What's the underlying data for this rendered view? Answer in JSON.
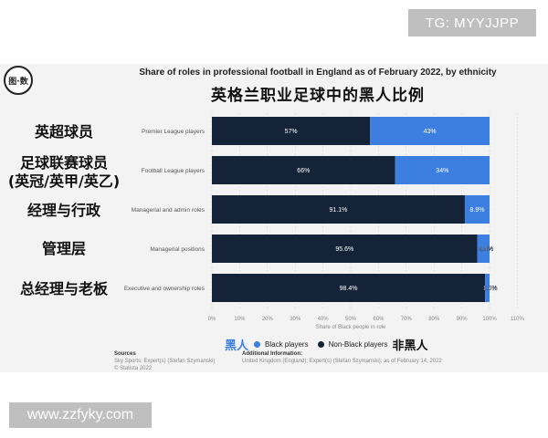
{
  "watermarks": {
    "top": "TG: MYYJJPP",
    "bottom": "www.zzfyky.com"
  },
  "logo_text": "图·数",
  "title": "Share of roles in professional football in England as of February 2022, by ethnicity",
  "cn_title": "英格兰职业足球中的黑人比例",
  "cn_labels": [
    "英超球员",
    "足球联赛球员",
    "(英冠/英甲/英乙)",
    "经理与行政",
    "管理层",
    "总经理与老板"
  ],
  "legend": {
    "cn_black": "黑人",
    "black": "Black players",
    "non_black": "Non-Black players",
    "cn_non_black": "非黑人"
  },
  "colors": {
    "black": "#3d7fe0",
    "non_black": "#142337",
    "panel": "#f3f3f3"
  },
  "sources": {
    "heading": "Sources",
    "line1": "Sky Sports; Expert(s) (Stefan Szymanski)",
    "line2": "© Statista 2022"
  },
  "additional_info": {
    "heading": "Additional Information:",
    "text": "United Kingdom (England); Expert(s) (Stefan Szymanski); as of February 14, 2022"
  },
  "chart_data": {
    "type": "bar",
    "orientation": "horizontal",
    "stacked": true,
    "title": "Share of roles in professional football in England as of February 2022, by ethnicity",
    "xlabel": "Share of Black people in role",
    "categories": [
      "Premier League players",
      "Football League players",
      "Managerial and admin roles",
      "Managerial positions",
      "Executive and ownership roles"
    ],
    "series": [
      {
        "name": "Non-Black players",
        "values": [
          57,
          66,
          91.1,
          95.6,
          98.4
        ],
        "labels": [
          "57%",
          "66%",
          "91.1%",
          "95.6%",
          "98.4%"
        ]
      },
      {
        "name": "Black players",
        "values": [
          43,
          34,
          8.9,
          4.4,
          1.6
        ],
        "labels": [
          "43%",
          "34%",
          "8.9%",
          "4.4%",
          "1.6%"
        ]
      }
    ],
    "xlim": [
      0,
      110
    ],
    "xticks": [
      0,
      10,
      20,
      30,
      40,
      50,
      60,
      70,
      80,
      90,
      100,
      110
    ],
    "xtick_labels": [
      "0%",
      "10%",
      "20%",
      "30%",
      "40%",
      "50%",
      "60%",
      "70%",
      "80%",
      "90%",
      "100%",
      "110%"
    ],
    "grid": true,
    "legend_position": "bottom"
  }
}
